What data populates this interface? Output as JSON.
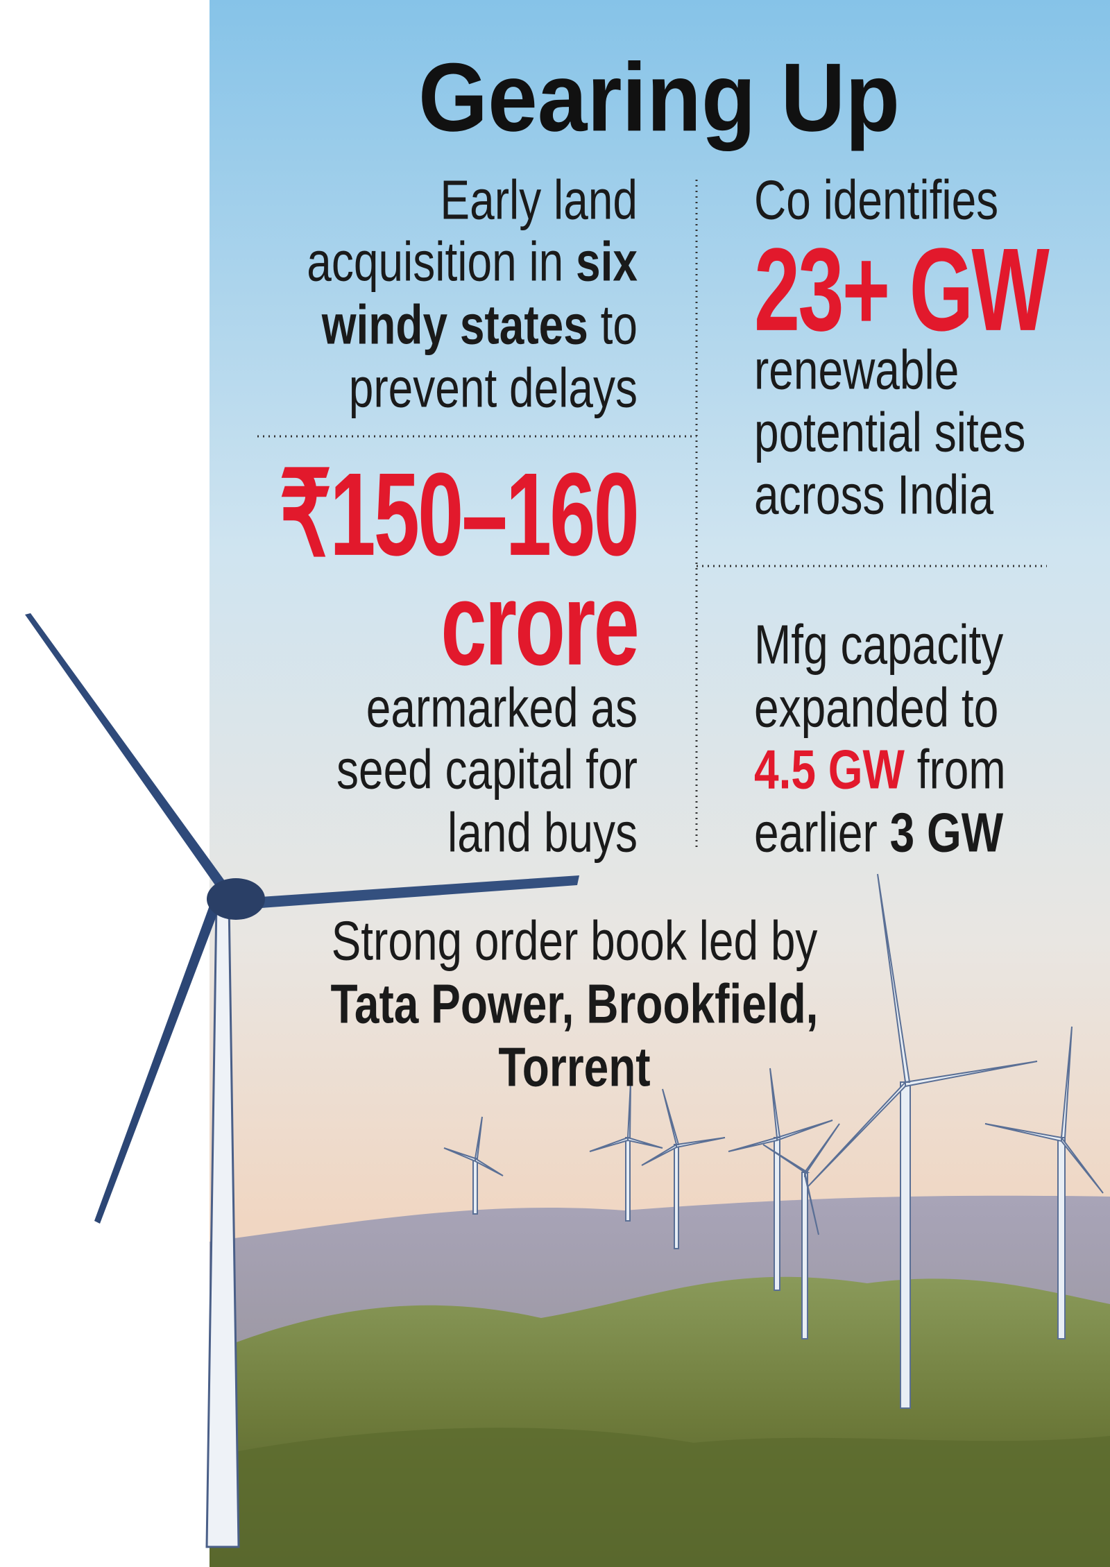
{
  "title": "Gearing Up",
  "blocks": [
    {
      "lines": [
        [
          {
            "text": "Early land",
            "style": "regular"
          }
        ],
        [
          {
            "text": "acquisition in ",
            "style": "regular"
          },
          {
            "text": "six",
            "style": "bold"
          }
        ],
        [
          {
            "text": "windy states",
            "style": "bold"
          },
          {
            "text": " to",
            "style": "regular"
          }
        ],
        [
          {
            "text": "prevent delays",
            "style": "regular"
          }
        ]
      ]
    },
    {
      "lines": [
        [
          {
            "text": "₹150–160",
            "style": "highlight"
          }
        ],
        [
          {
            "text": "crore",
            "style": "highlight"
          }
        ],
        [
          {
            "text": "earmarked as",
            "style": "regular"
          }
        ],
        [
          {
            "text": "seed capital for",
            "style": "regular"
          }
        ],
        [
          {
            "text": "land buys",
            "style": "regular"
          }
        ]
      ]
    },
    {
      "lines": [
        [
          {
            "text": "Co identifies",
            "style": "regular"
          }
        ],
        [
          {
            "text": "23+ GW",
            "style": "highlight"
          }
        ],
        [
          {
            "text": "renewable",
            "style": "regular"
          }
        ],
        [
          {
            "text": "potential sites",
            "style": "regular"
          }
        ],
        [
          {
            "text": "across India",
            "style": "regular"
          }
        ]
      ]
    },
    {
      "lines": [
        [
          {
            "text": "Mfg capacity",
            "style": "regular"
          }
        ],
        [
          {
            "text": "expanded to",
            "style": "regular"
          }
        ],
        [
          {
            "text": "4.5 GW",
            "style": "red-bold"
          },
          {
            "text": " from",
            "style": "regular"
          }
        ],
        [
          {
            "text": "earlier ",
            "style": "regular"
          },
          {
            "text": "3 GW",
            "style": "bold"
          }
        ]
      ]
    },
    {
      "lines": [
        [
          {
            "text": "Strong order book led by",
            "style": "regular"
          }
        ],
        [
          {
            "text": "Tata Power, Brookfield,",
            "style": "bold"
          }
        ],
        [
          {
            "text": "Torrent",
            "style": "bold"
          }
        ]
      ]
    }
  ]
}
